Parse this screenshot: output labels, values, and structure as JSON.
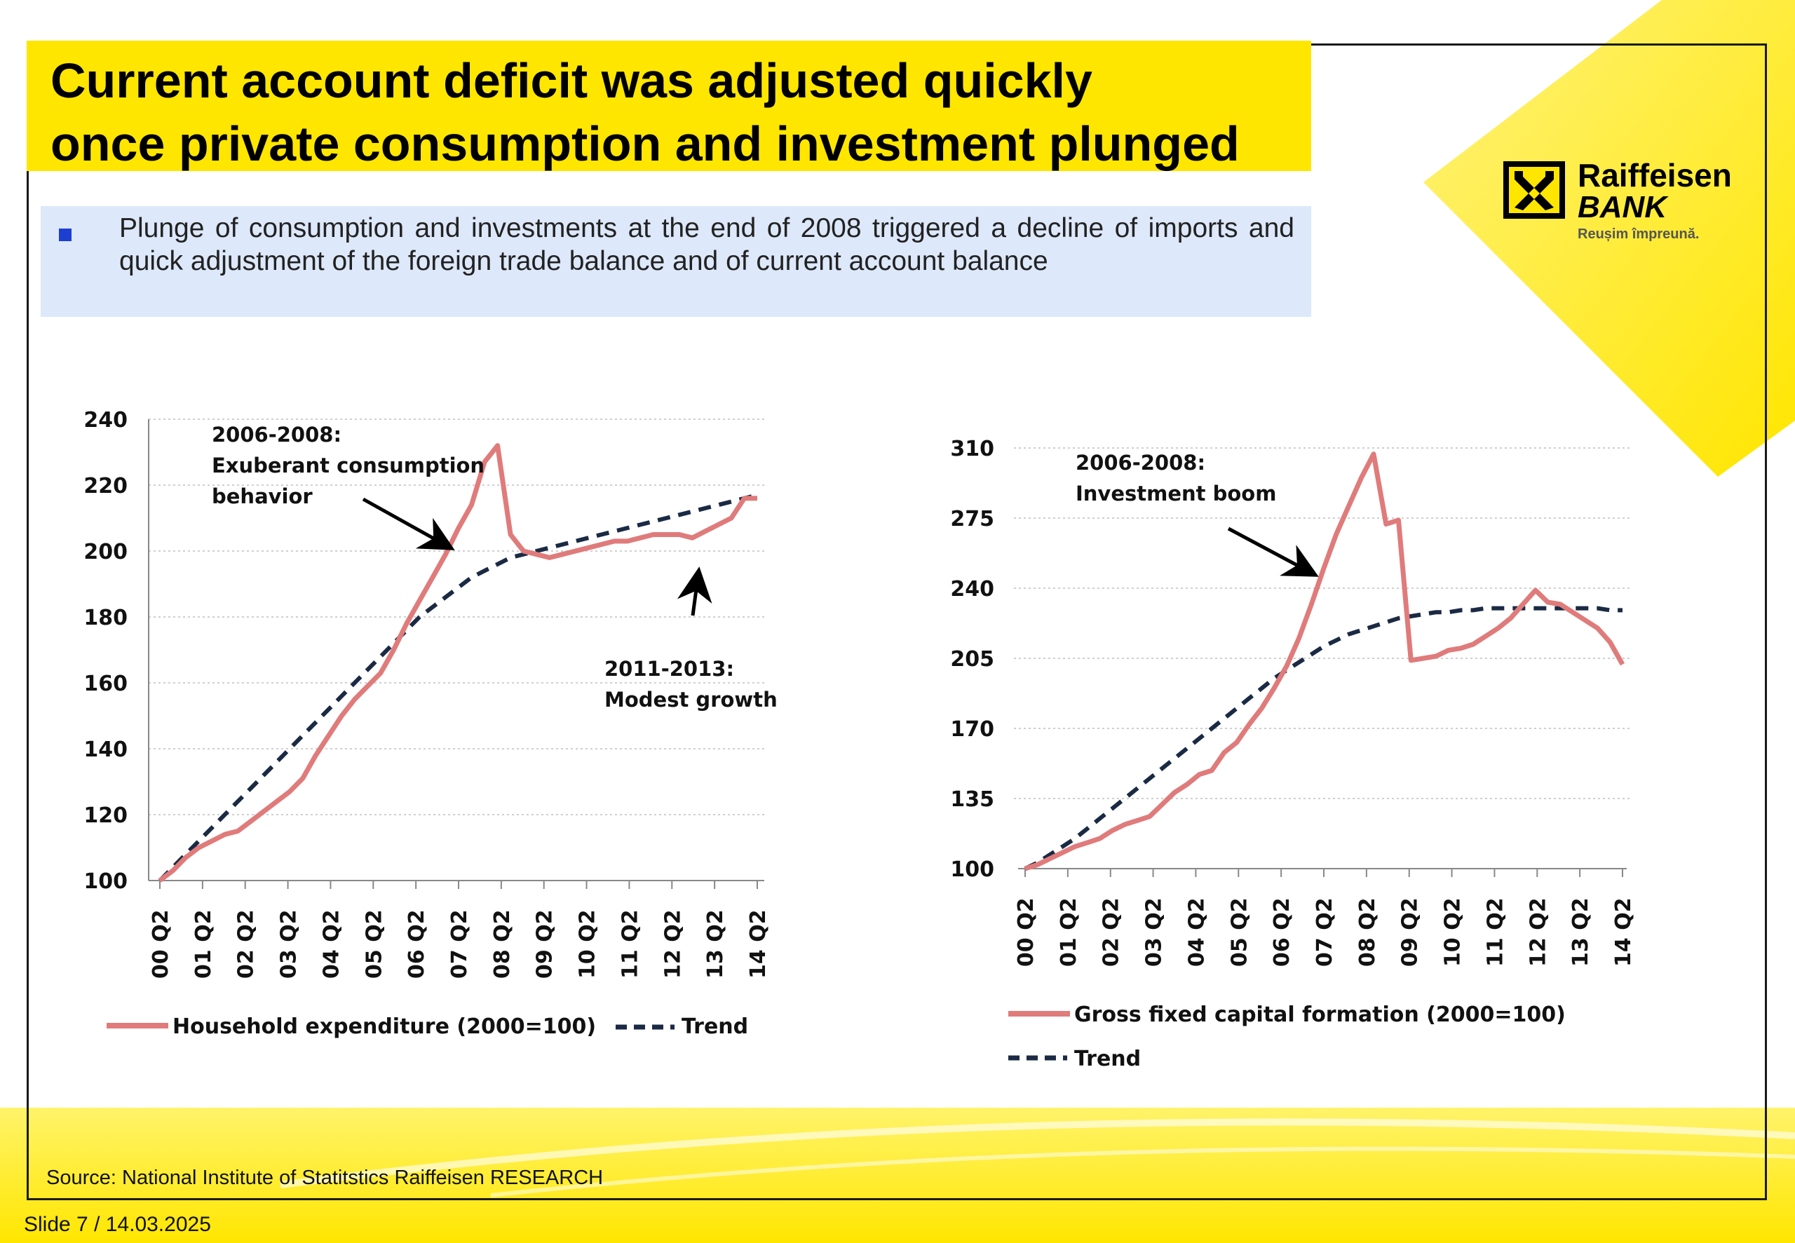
{
  "slide": {
    "title_line1": "Current account deficit was adjusted quickly",
    "title_line2": "once private consumption and investment plunged",
    "bullet": "Plunge of consumption and investments at the end of 2008 triggered a decline of imports and quick adjustment of the foreign trade balance and of current account balance",
    "logo_name": "Raiffeisen",
    "logo_bank": "BANK",
    "logo_tagline": "Reușim împreună.",
    "source": "Source:  National Institute of Statitstics Raiffeisen RESEARCH",
    "slide_number": "Slide 7 / 14.03.2025",
    "colors": {
      "accent_yellow": "#ffe600",
      "bullet_bg": "#dde8fb",
      "series": "#e07b7b",
      "trend": "#1b2a44"
    }
  },
  "chart_data": [
    {
      "type": "line",
      "title": "",
      "xlabel": "",
      "ylabel": "",
      "ylim": [
        100,
        240
      ],
      "yticks": [
        "100",
        "120",
        "140",
        "160",
        "180",
        "200",
        "220",
        "240"
      ],
      "xtick_labels": [
        "00 Q2",
        "01 Q2",
        "02 Q2",
        "03 Q2",
        "04 Q2",
        "05 Q2",
        "06 Q2",
        "07 Q2",
        "08 Q2",
        "09 Q2",
        "10 Q2",
        "11 Q2",
        "12 Q2",
        "13 Q2",
        "14 Q2"
      ],
      "grid": true,
      "legend": "bottom",
      "series": [
        {
          "name": "Household expenditure (2000=100)",
          "style": "solid",
          "color": "#e07b7b",
          "values": [
            100,
            103,
            107,
            110,
            112,
            114,
            115,
            118,
            121,
            124,
            127,
            131,
            138,
            144,
            150,
            155,
            159,
            163,
            170,
            178,
            185,
            192,
            199,
            207,
            214,
            227,
            232,
            205,
            200,
            199,
            198,
            199,
            200,
            201,
            202,
            203,
            203,
            204,
            205,
            205,
            205,
            204,
            206,
            208,
            210,
            216,
            216
          ]
        },
        {
          "name": "Trend",
          "style": "dashed",
          "color": "#1b2a44",
          "values": [
            100,
            104,
            108,
            112,
            116,
            120,
            124,
            128,
            132,
            136,
            140,
            144,
            148,
            152,
            156,
            160,
            164,
            168,
            172,
            176,
            180,
            183,
            186,
            189,
            192,
            194,
            196,
            198,
            199,
            200,
            201,
            202,
            203,
            204,
            205,
            206,
            207,
            208,
            209,
            210,
            211,
            212,
            213,
            214,
            215,
            216,
            217
          ]
        }
      ],
      "annotations": [
        "2006-2008:",
        "Exuberant consumption",
        "behavior",
        "2011-2013:",
        "Modest growth"
      ]
    },
    {
      "type": "line",
      "title": "",
      "xlabel": "",
      "ylabel": "",
      "ylim": [
        100,
        310
      ],
      "yticks": [
        "100",
        "135",
        "170",
        "205",
        "240",
        "275",
        "310"
      ],
      "xtick_labels": [
        "00 Q2",
        "01 Q2",
        "02 Q2",
        "03 Q2",
        "04 Q2",
        "05 Q2",
        "06 Q2",
        "07 Q2",
        "08 Q2",
        "09 Q2",
        "10 Q2",
        "11 Q2",
        "12 Q2",
        "13 Q2",
        "14 Q2"
      ],
      "grid": true,
      "legend": "bottom",
      "series": [
        {
          "name": "Gross fixed capital formation (2000=100)",
          "style": "solid",
          "color": "#e07b7b",
          "values": [
            100,
            102,
            105,
            108,
            111,
            113,
            115,
            119,
            122,
            124,
            126,
            132,
            138,
            142,
            147,
            149,
            158,
            163,
            172,
            180,
            190,
            201,
            215,
            232,
            250,
            267,
            281,
            295,
            307,
            272,
            274,
            204,
            205,
            206,
            209,
            210,
            212,
            216,
            220,
            225,
            232,
            239,
            233,
            232,
            228,
            224,
            220,
            213,
            202
          ]
        },
        {
          "name": "Trend",
          "style": "dashed",
          "color": "#1b2a44",
          "values": [
            100,
            103,
            107,
            111,
            115,
            120,
            125,
            130,
            135,
            140,
            145,
            150,
            155,
            160,
            165,
            170,
            175,
            180,
            185,
            190,
            195,
            199,
            203,
            207,
            211,
            214,
            217,
            219,
            221,
            223,
            225,
            226,
            227,
            228,
            228,
            229,
            229,
            230,
            230,
            230,
            230,
            230,
            230,
            230,
            230,
            230,
            230,
            229,
            229
          ]
        }
      ],
      "annotations": [
        "2006-2008:",
        "Investment boom"
      ]
    }
  ]
}
